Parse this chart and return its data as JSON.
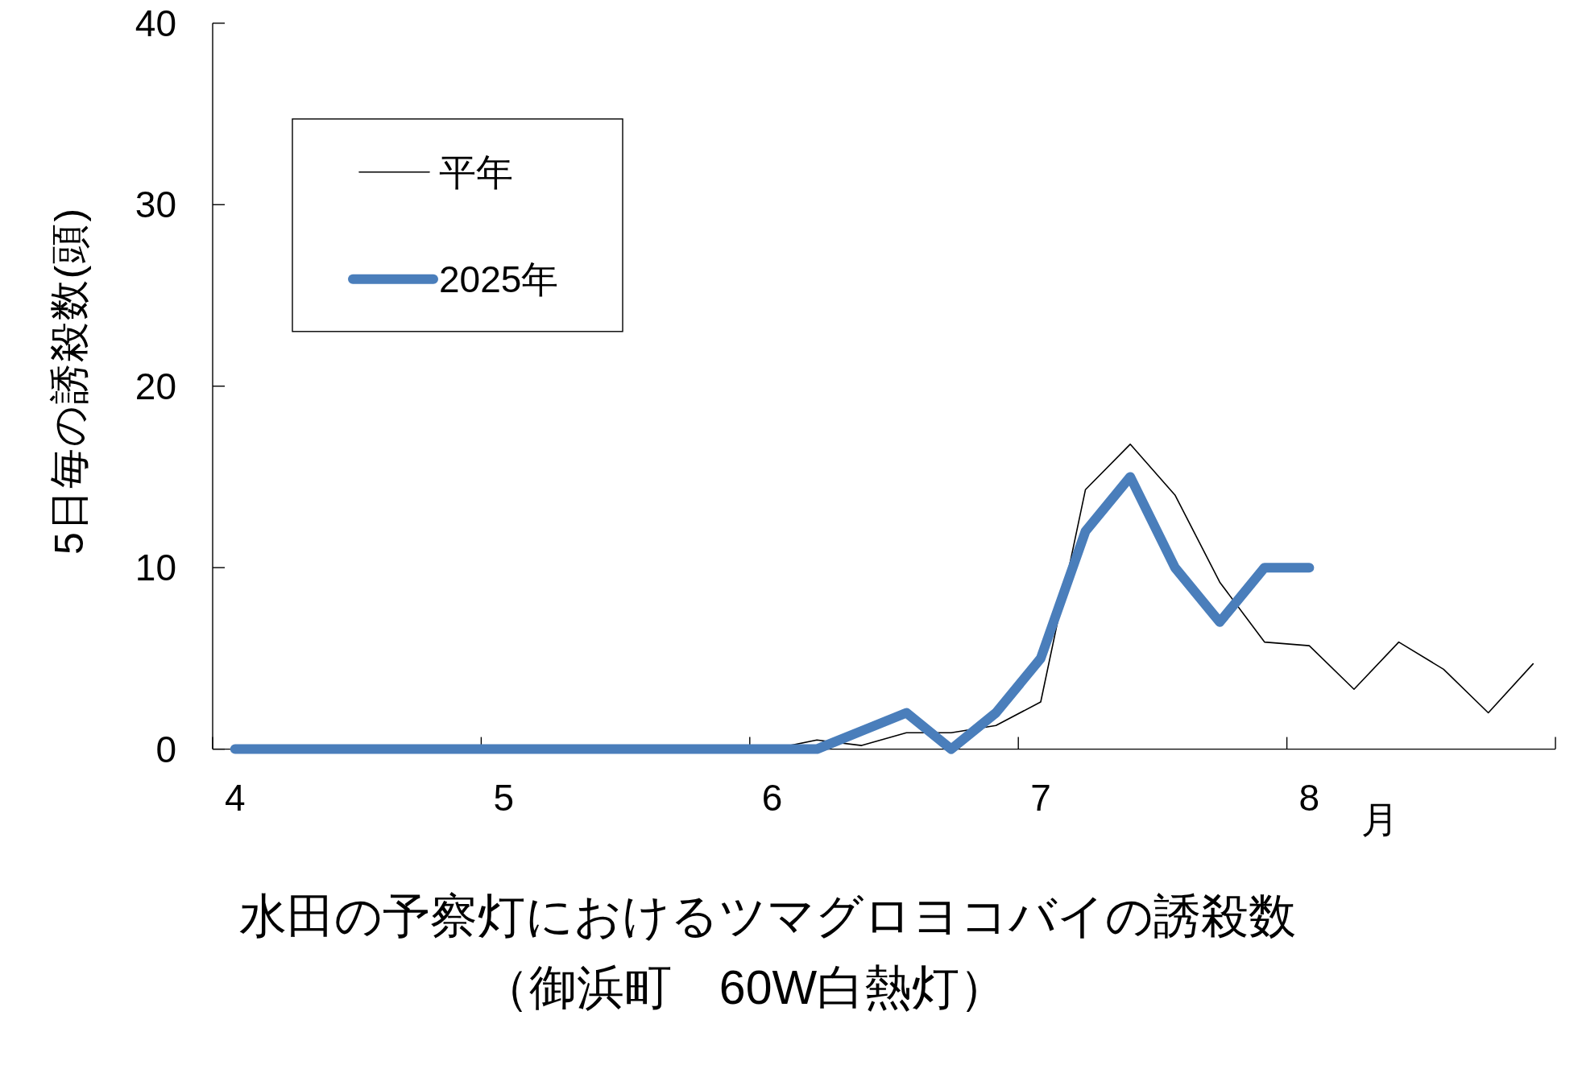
{
  "chart_data": {
    "type": "line",
    "title": "水田の予察灯におけるツマグロヨコバイの誘殺数",
    "subtitle": "（御浜町　60W白熱灯）",
    "xlabel": "月",
    "ylabel": "5日毎の誘殺数(頭)",
    "categories": [
      "4",
      null,
      null,
      null,
      null,
      null,
      "5",
      null,
      null,
      null,
      null,
      null,
      "6",
      null,
      null,
      null,
      null,
      null,
      "7",
      null,
      null,
      null,
      null,
      null,
      "8",
      null,
      null,
      null,
      null,
      null
    ],
    "series": [
      {
        "name": "平年",
        "color": "#000000",
        "values": [
          null,
          null,
          null,
          null,
          null,
          null,
          null,
          null,
          null,
          null,
          null,
          null,
          0,
          0.5,
          0.2,
          0.9,
          0.9,
          1.3,
          2.6,
          14.3,
          16.8,
          14.0,
          9.2,
          5.9,
          5.7,
          3.3,
          5.9,
          4.4,
          2.0,
          4.7
        ]
      },
      {
        "name": "2025年",
        "color": "#4a7ebb",
        "values": [
          0,
          0,
          0,
          0,
          0,
          0,
          0,
          0,
          0,
          0,
          0,
          0,
          0,
          0,
          1,
          2,
          0,
          2,
          5,
          12,
          15,
          10,
          7,
          10,
          10,
          null,
          null,
          null,
          null,
          null
        ]
      }
    ],
    "ylim": [
      0,
      40
    ],
    "yticks": [
      0,
      10,
      20,
      30,
      40
    ],
    "legend": "top left",
    "line_style": "solid"
  }
}
